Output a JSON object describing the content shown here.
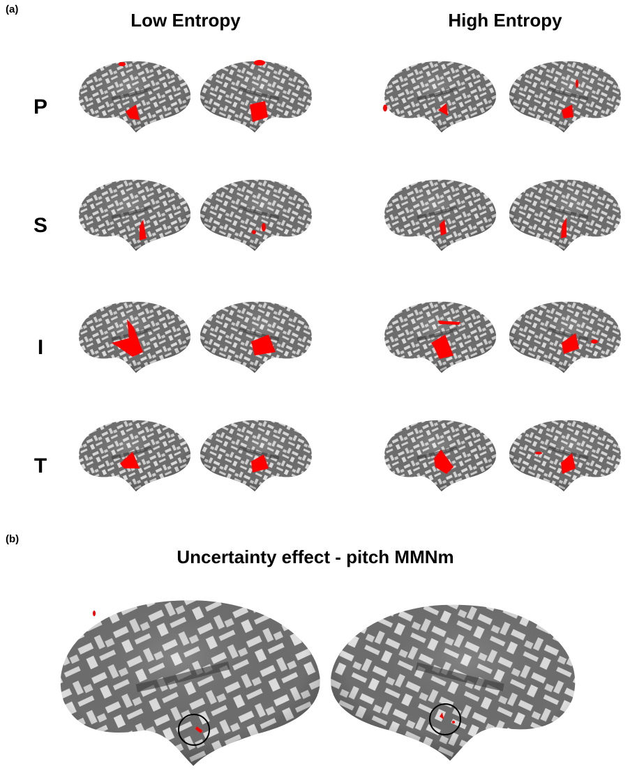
{
  "panel_a": {
    "label": "(a)",
    "columns": [
      "Low Entropy",
      "High Entropy"
    ],
    "rows": [
      "P",
      "S",
      "I",
      "T"
    ]
  },
  "panel_b": {
    "label": "(b)",
    "title": "Uncertainty effect - pitch MMNm"
  }
}
